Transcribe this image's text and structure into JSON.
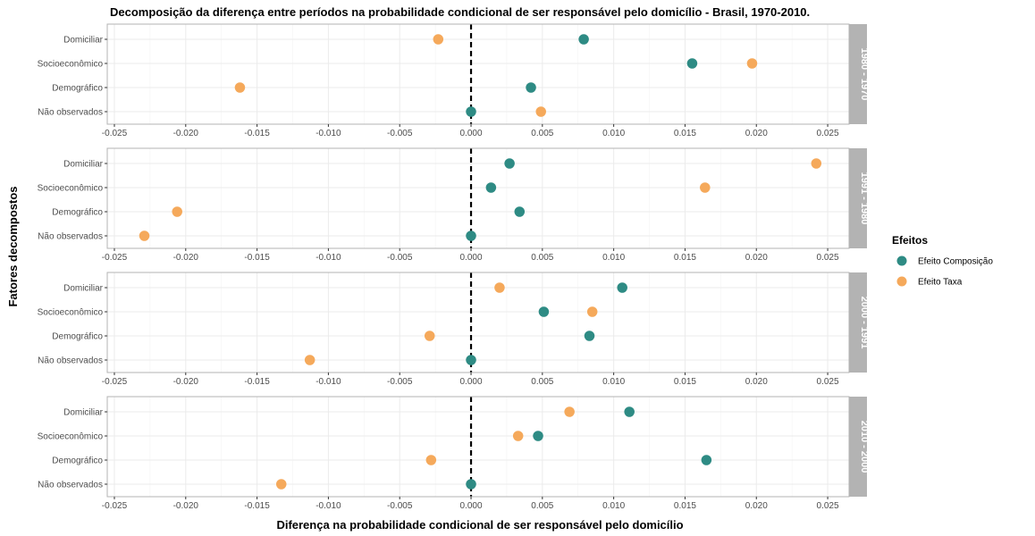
{
  "chart_data": {
    "type": "scatter",
    "title": "Decomposição da diferença entre períodos na probabilidade condicional de ser responsável pelo domicílio - Brasil, 1970-2010.",
    "xlabel": "Diferença na probabilidade condicional de ser responsável pelo domicílio",
    "ylabel": "Fatores decompostos",
    "xlim": [
      -0.0255,
      0.0265
    ],
    "x_ticks": [
      "-0.025",
      "-0.020",
      "-0.015",
      "-0.010",
      "-0.005",
      "0.000",
      "0.005",
      "0.010",
      "0.015",
      "0.020",
      "0.025"
    ],
    "reference_line": {
      "x": 0,
      "style": "dashed",
      "color": "#000000"
    },
    "categories": [
      "Domiciliar",
      "Socioeconômico",
      "Demográfico",
      "Não observados"
    ],
    "grid": true,
    "legend": {
      "title": "Efeitos",
      "position": "right",
      "entries": [
        {
          "name": "Efeito Composição",
          "color": "#2e8b84"
        },
        {
          "name": "Efeito Taxa",
          "color": "#f5a95b"
        }
      ]
    },
    "colors": {
      "strip_bg": "#b3b3b3",
      "panel_border": "#b3b3b3",
      "grid": "#ebebeb"
    },
    "panels": [
      {
        "label": "1980 - 1970",
        "series": [
          {
            "name": "Efeito Composição",
            "values": [
              0.0079,
              0.0155,
              0.0042,
              0.0
            ]
          },
          {
            "name": "Efeito Taxa",
            "values": [
              -0.0023,
              0.0197,
              -0.0162,
              0.0049
            ]
          }
        ]
      },
      {
        "label": "1991 - 1980",
        "series": [
          {
            "name": "Efeito Composição",
            "values": [
              0.0027,
              0.0014,
              0.0034,
              0.0
            ]
          },
          {
            "name": "Efeito Taxa",
            "values": [
              0.0242,
              0.0164,
              -0.0206,
              -0.0229
            ]
          }
        ]
      },
      {
        "label": "2000 - 1991",
        "series": [
          {
            "name": "Efeito Composição",
            "values": [
              0.0106,
              0.0051,
              0.0083,
              0.0
            ]
          },
          {
            "name": "Efeito Taxa",
            "values": [
              0.002,
              0.0085,
              -0.0029,
              -0.0113
            ]
          }
        ]
      },
      {
        "label": "2010 - 2000",
        "series": [
          {
            "name": "Efeito Composição",
            "values": [
              0.0111,
              0.0047,
              0.0165,
              0.0
            ]
          },
          {
            "name": "Efeito Taxa",
            "values": [
              0.0069,
              0.0033,
              -0.0028,
              -0.0133
            ]
          }
        ]
      }
    ]
  }
}
